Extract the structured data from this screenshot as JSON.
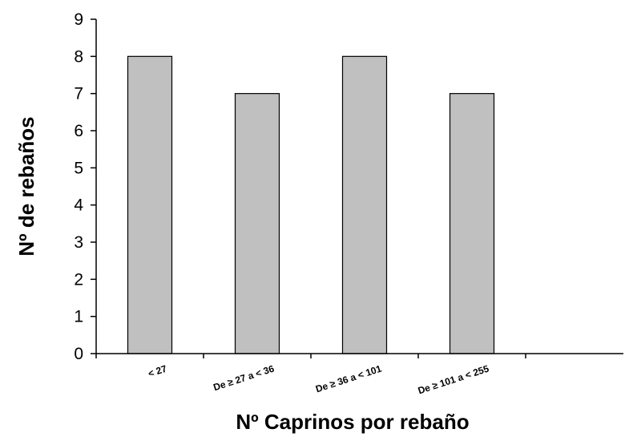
{
  "chart_data": {
    "type": "bar",
    "categories": [
      "< 27",
      "De ≥ 27 a < 36",
      "De ≥ 36 a < 101",
      "De ≥ 101 a < 255"
    ],
    "values": [
      8,
      7,
      8,
      7
    ],
    "title": "",
    "xlabel": "Nº Caprinos por rebaño",
    "ylabel": "Nº de rebaños",
    "ylim": [
      0,
      9
    ],
    "yticks": [
      "0",
      "1",
      "2",
      "3",
      "4",
      "5",
      "6",
      "7",
      "8",
      "9"
    ],
    "grid": false,
    "legend": "none",
    "bar_color": "#c0c0c0",
    "edge_color": "#000000"
  }
}
